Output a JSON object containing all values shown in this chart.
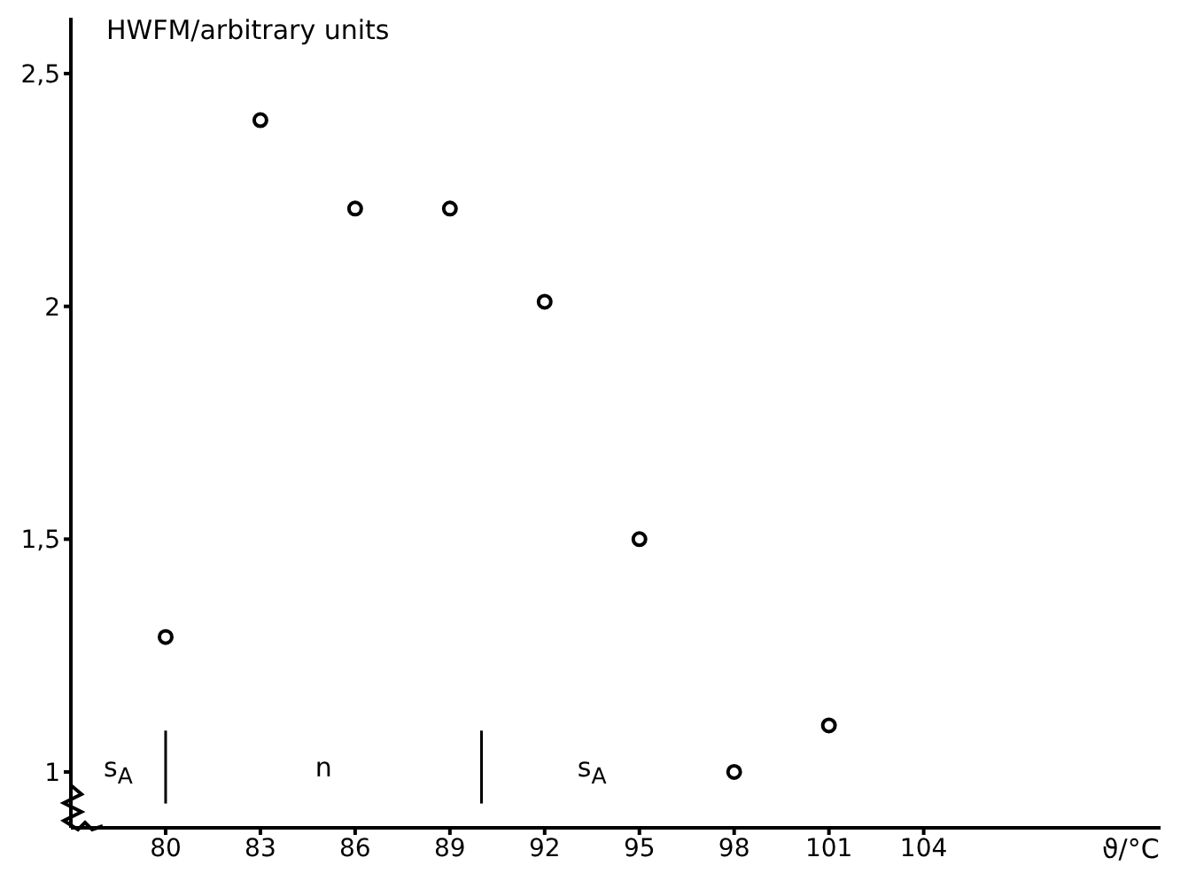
{
  "chart_data": {
    "type": "scatter",
    "ylabel": "HWFM/arbitrary units",
    "xlabel": "ϑ/°C",
    "x": [
      80,
      83,
      86,
      89,
      92,
      95,
      98,
      101
    ],
    "values": [
      1.29,
      2.4,
      2.21,
      2.21,
      2.01,
      1.5,
      1.0,
      1.1
    ],
    "color": "#000000",
    "marker": "circle",
    "grid": false,
    "legend": false,
    "xlim": [
      77,
      111.5
    ],
    "xticks": [
      80,
      83,
      86,
      89,
      92,
      95,
      98,
      101,
      104
    ],
    "ylim": [
      0.88,
      2.62
    ],
    "yticks": [
      1,
      {
        "value": 1.5,
        "label": "1,5"
      },
      2,
      {
        "value": 2.5,
        "label": "2,5"
      }
    ],
    "ref_lines": [
      {
        "axis": "x",
        "value": 80
      },
      {
        "axis": "x",
        "value": 90
      }
    ],
    "annotations": [
      "s$_{A}$",
      "n",
      "s$_{A}$"
    ]
  }
}
